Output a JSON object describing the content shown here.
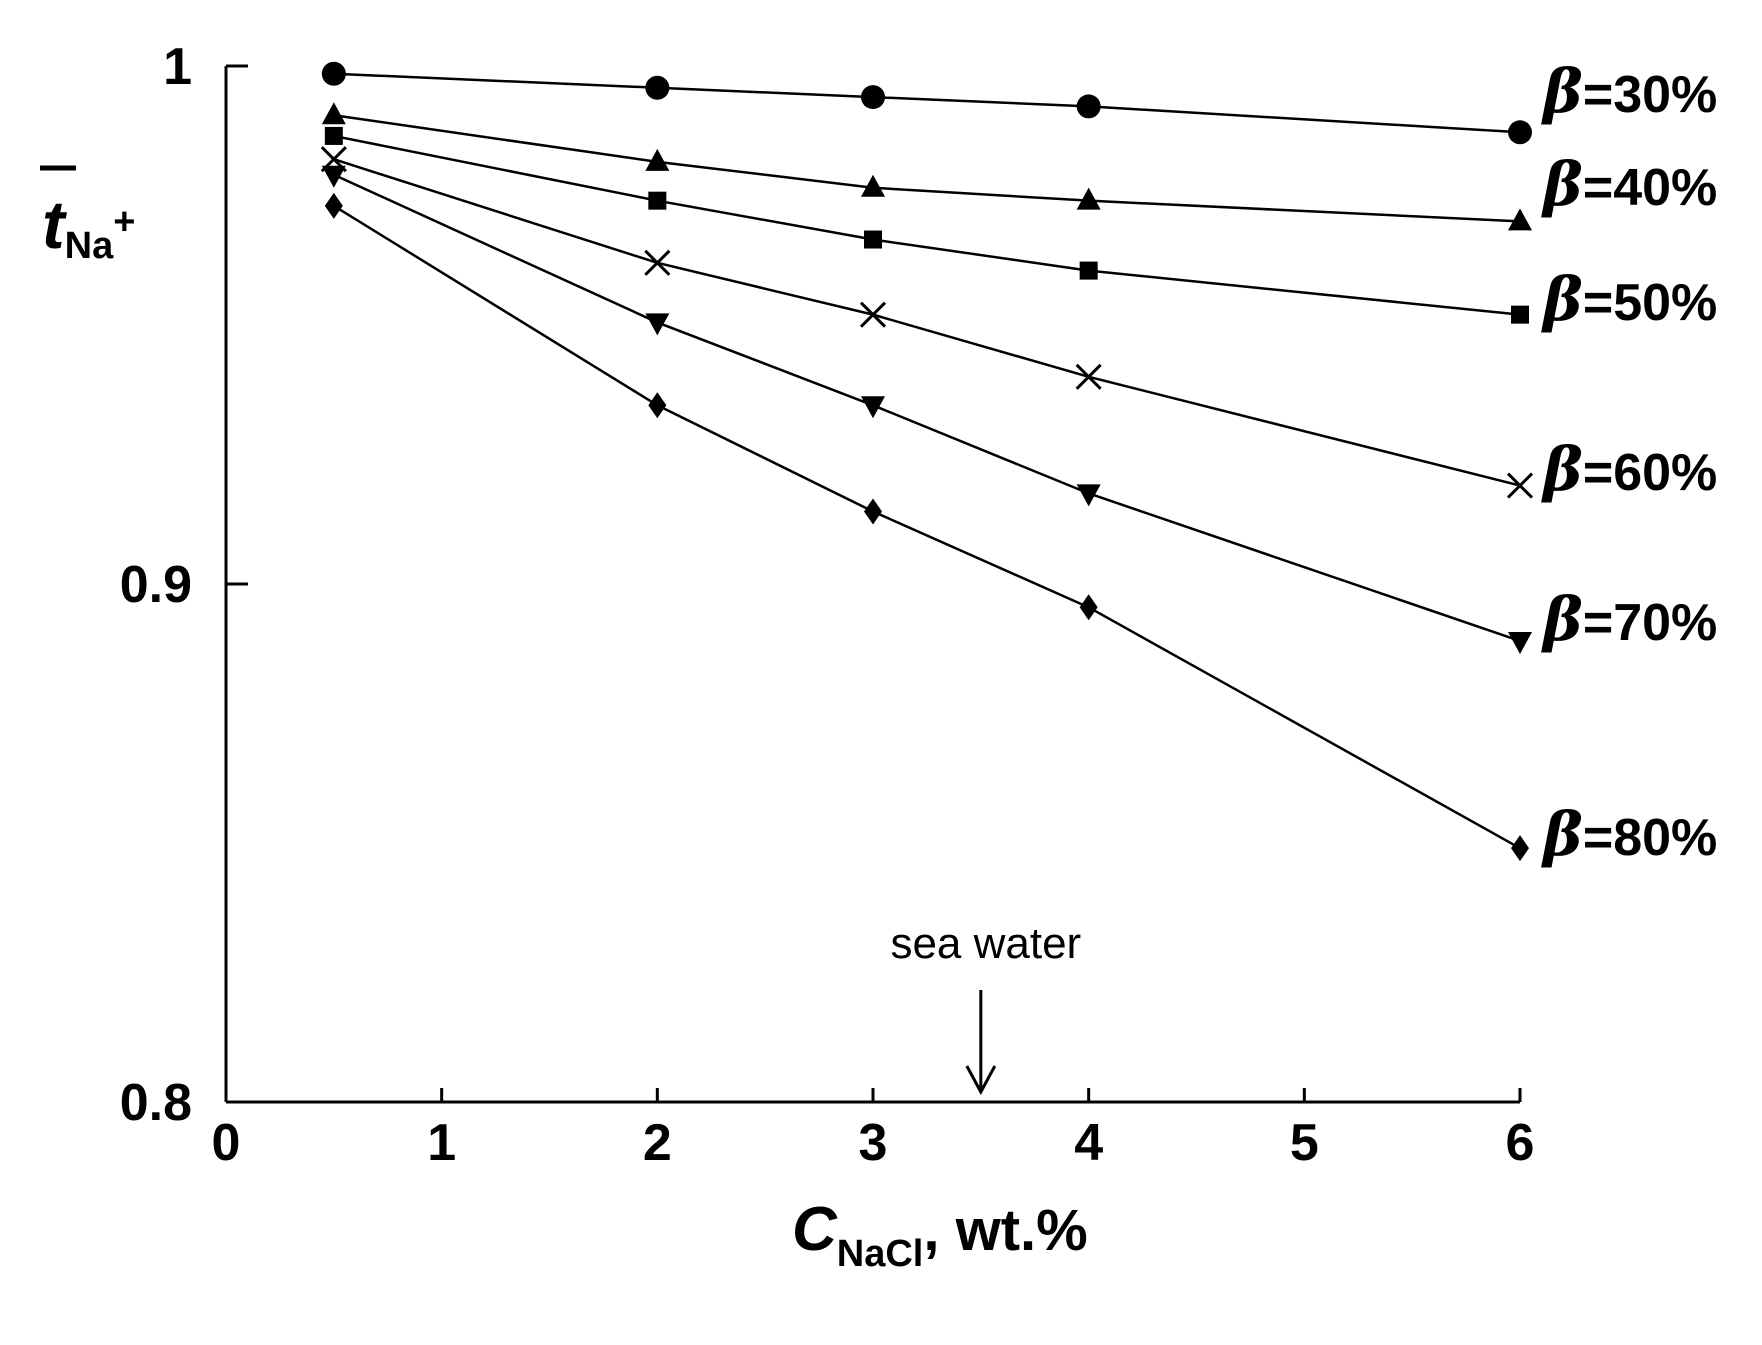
{
  "chart_data": {
    "type": "line",
    "xlabel": {
      "main": "C",
      "sub": "NaCl",
      "suffix": ", wt.%"
    },
    "ylabel": {
      "main": "t",
      "sub": "Na",
      "sup": "+"
    },
    "xlim": [
      0,
      6
    ],
    "ylim": [
      0.8,
      1.0
    ],
    "x_ticks": [
      "0",
      "1",
      "2",
      "3",
      "4",
      "5",
      "6"
    ],
    "y_ticks": [
      "0.8",
      "0.9",
      "1"
    ],
    "grid": false,
    "x": [
      0.5,
      2,
      3,
      4,
      6
    ],
    "series": [
      {
        "name": "β=30%",
        "label_prefix": "β",
        "label_rest": "=30%",
        "marker": "circle",
        "values": [
          0.9985,
          0.9958,
          0.994,
          0.9922,
          0.9872
        ]
      },
      {
        "name": "β=40%",
        "label_prefix": "β",
        "label_rest": "=40%",
        "marker": "triangle-up",
        "values": [
          0.9905,
          0.9815,
          0.9765,
          0.974,
          0.97
        ]
      },
      {
        "name": "β=50%",
        "label_prefix": "β",
        "label_rest": "=50%",
        "marker": "square",
        "values": [
          0.9865,
          0.974,
          0.9665,
          0.9605,
          0.952
        ]
      },
      {
        "name": "β=60%",
        "label_prefix": "β",
        "label_rest": "=60%",
        "marker": "x",
        "values": [
          0.982,
          0.962,
          0.952,
          0.94,
          0.919
        ]
      },
      {
        "name": "β=70%",
        "label_prefix": "β",
        "label_rest": "=70%",
        "marker": "triangle-down",
        "values": [
          0.979,
          0.9505,
          0.9345,
          0.9175,
          0.889
        ]
      },
      {
        "name": "β=80%",
        "label_prefix": "β",
        "label_rest": "=80%",
        "marker": "diamond",
        "values": [
          0.973,
          0.9345,
          0.914,
          0.8955,
          0.849
        ]
      }
    ],
    "annotations": [
      {
        "text": "sea water",
        "x": 3.5,
        "arrow": "down"
      }
    ]
  }
}
